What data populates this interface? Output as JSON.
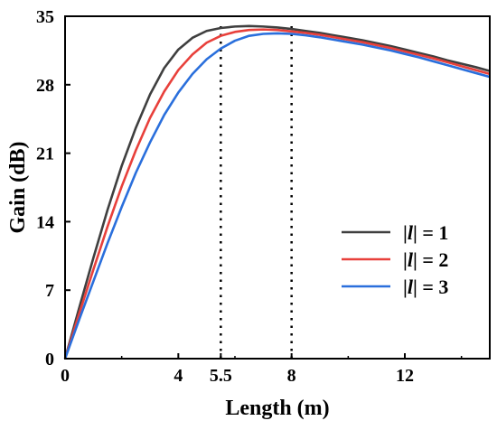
{
  "chart_data": {
    "type": "line",
    "title": "",
    "xlabel": "Length (m)",
    "ylabel": "Gain (dB)",
    "xlim": [
      0,
      15
    ],
    "ylim": [
      0,
      35
    ],
    "x_ticks": [
      {
        "value": 0,
        "label": "0"
      },
      {
        "value": 4,
        "label": "4"
      },
      {
        "value": 5.5,
        "label": "5.5"
      },
      {
        "value": 8,
        "label": "8"
      },
      {
        "value": 12,
        "label": "12"
      }
    ],
    "y_ticks": [
      {
        "value": 0,
        "label": "0"
      },
      {
        "value": 7,
        "label": "7"
      },
      {
        "value": 14,
        "label": "14"
      },
      {
        "value": 21,
        "label": "21"
      },
      {
        "value": 28,
        "label": "28"
      },
      {
        "value": 35,
        "label": "35"
      }
    ],
    "reference_lines": [
      {
        "x": 5.5,
        "style": "dotted"
      },
      {
        "x": 8,
        "style": "dotted"
      }
    ],
    "legend_position": "bottom-right",
    "grid": false,
    "series": [
      {
        "name": "|l| = 1",
        "legend_prefix": "|",
        "legend_symbol": "l",
        "legend_suffix": "| = 1",
        "color": "#3f3f3f",
        "x": [
          0,
          0.5,
          1,
          1.5,
          2,
          2.5,
          3,
          3.5,
          4,
          4.5,
          5,
          5.5,
          6,
          6.5,
          7,
          7.5,
          8,
          8.5,
          9,
          9.5,
          10,
          10.5,
          11,
          11.5,
          12,
          12.5,
          13,
          13.5,
          14,
          14.5,
          15
        ],
        "values": [
          0,
          5.2,
          10.3,
          15.2,
          19.7,
          23.6,
          27.0,
          29.7,
          31.6,
          32.8,
          33.5,
          33.8,
          33.95,
          34.0,
          33.95,
          33.85,
          33.7,
          33.5,
          33.3,
          33.05,
          32.8,
          32.55,
          32.25,
          31.95,
          31.6,
          31.25,
          30.9,
          30.5,
          30.15,
          29.8,
          29.4
        ]
      },
      {
        "name": "|l| = 2",
        "legend_prefix": "|",
        "legend_symbol": "l",
        "legend_suffix": "| = 2",
        "color": "#e8403b",
        "x": [
          0,
          0.5,
          1,
          1.5,
          2,
          2.5,
          3,
          3.5,
          4,
          4.5,
          5,
          5.5,
          6,
          6.5,
          7,
          7.5,
          8,
          8.5,
          9,
          9.5,
          10,
          10.5,
          11,
          11.5,
          12,
          12.5,
          13,
          13.5,
          14,
          14.5,
          15
        ],
        "values": [
          0,
          4.6,
          9.1,
          13.5,
          17.6,
          21.3,
          24.6,
          27.3,
          29.5,
          31.1,
          32.3,
          33.0,
          33.4,
          33.6,
          33.65,
          33.6,
          33.45,
          33.3,
          33.1,
          32.85,
          32.6,
          32.35,
          32.05,
          31.75,
          31.4,
          31.05,
          30.7,
          30.3,
          29.9,
          29.5,
          29.1
        ]
      },
      {
        "name": "|l| = 3",
        "legend_prefix": "|",
        "legend_symbol": "l",
        "legend_suffix": "| = 3",
        "color": "#2a6fdc",
        "x": [
          0,
          0.5,
          1,
          1.5,
          2,
          2.5,
          3,
          3.5,
          4,
          4.5,
          5,
          5.5,
          6,
          6.5,
          7,
          7.5,
          8,
          8.5,
          9,
          9.5,
          10,
          10.5,
          11,
          11.5,
          12,
          12.5,
          13,
          13.5,
          14,
          14.5,
          15
        ],
        "values": [
          0,
          4.0,
          7.9,
          11.8,
          15.5,
          19.0,
          22.1,
          24.9,
          27.2,
          29.1,
          30.6,
          31.7,
          32.5,
          33.0,
          33.2,
          33.25,
          33.2,
          33.05,
          32.85,
          32.6,
          32.35,
          32.1,
          31.8,
          31.5,
          31.15,
          30.8,
          30.4,
          30.0,
          29.6,
          29.2,
          28.8
        ]
      }
    ]
  }
}
